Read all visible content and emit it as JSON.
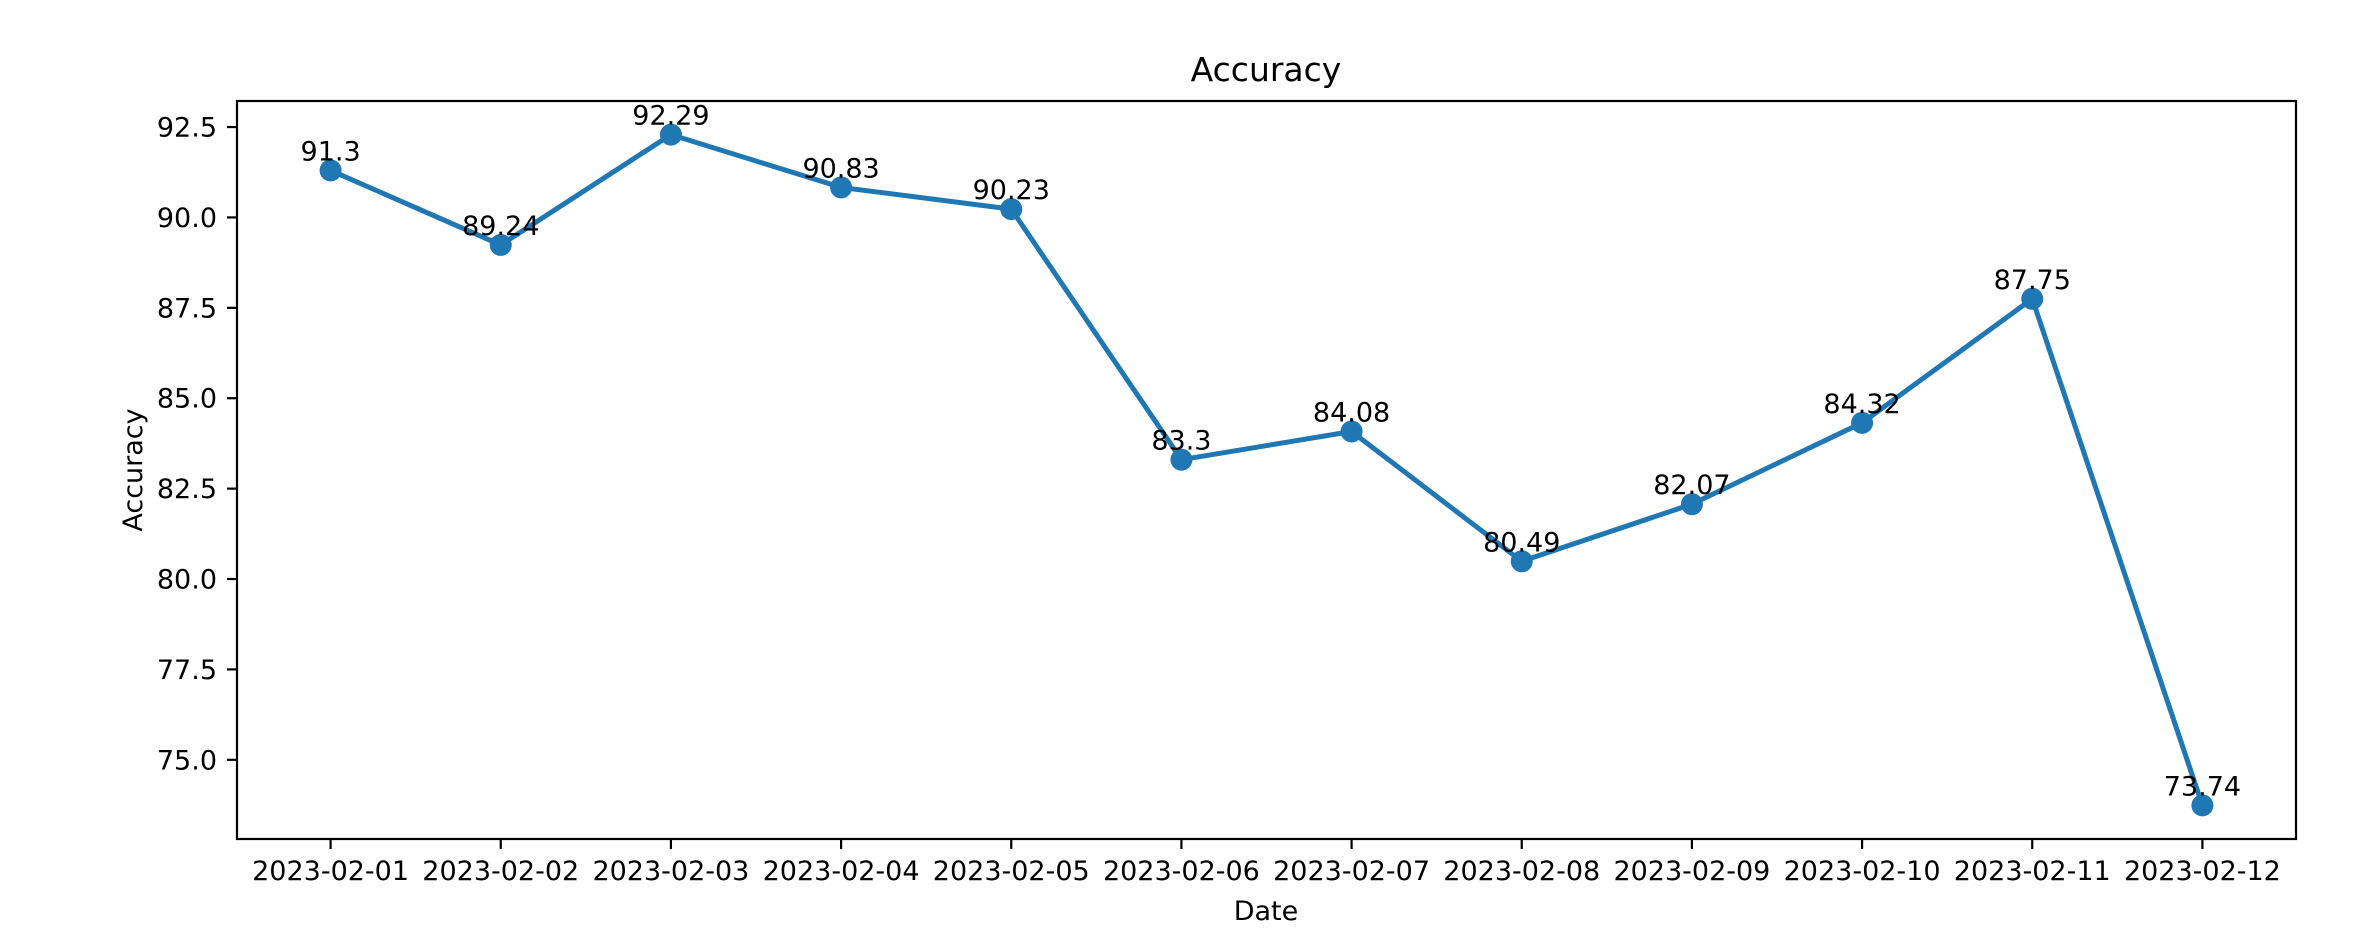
{
  "chart_data": {
    "type": "line",
    "title": "Accuracy",
    "xlabel": "Date",
    "ylabel": "Accuracy",
    "x": [
      "2023-02-01",
      "2023-02-02",
      "2023-02-03",
      "2023-02-04",
      "2023-02-05",
      "2023-02-06",
      "2023-02-07",
      "2023-02-08",
      "2023-02-09",
      "2023-02-10",
      "2023-02-11",
      "2023-02-12"
    ],
    "series": [
      {
        "name": "Accuracy",
        "values": [
          91.3,
          89.24,
          92.29,
          90.83,
          90.23,
          83.3,
          84.08,
          80.49,
          82.07,
          84.32,
          87.75,
          73.74
        ]
      }
    ],
    "point_labels": [
      "91.3",
      "89.24",
      "92.29",
      "90.83",
      "90.23",
      "83.3",
      "84.08",
      "80.49",
      "82.07",
      "84.32",
      "87.75",
      "73.74"
    ],
    "yticks": {
      "values": [
        75.0,
        77.5,
        80.0,
        82.5,
        85.0,
        87.5,
        90.0,
        92.5
      ],
      "labels": [
        "75.0",
        "77.5",
        "80.0",
        "82.5",
        "85.0",
        "87.5",
        "90.0",
        "92.5"
      ]
    },
    "ylim": [
      72.81,
      93.22
    ],
    "xlim_index": [
      -0.55,
      11.55
    ],
    "grid": false,
    "legend": "none",
    "line_color": "#1f77b4",
    "marker": "circle",
    "axis_color": "#000000"
  }
}
